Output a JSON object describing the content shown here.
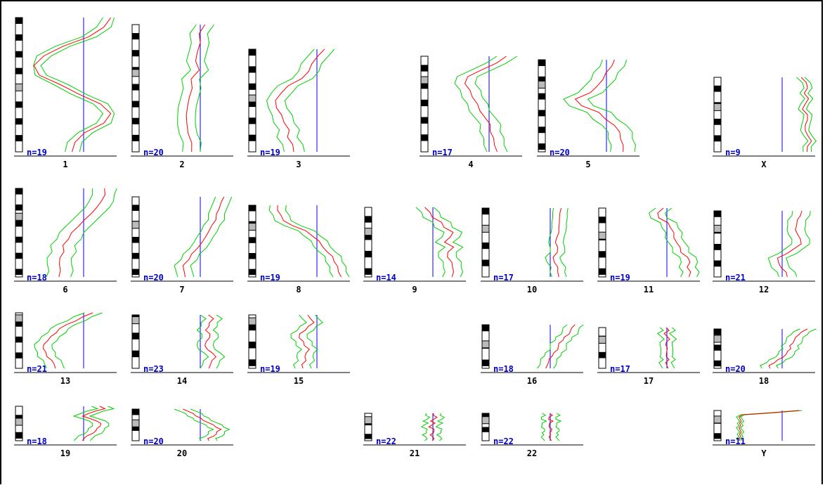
{
  "colors": {
    "mean": "#ff0000",
    "band": "#00d000",
    "baseline": "#0000ff",
    "count_text": "#0000cc",
    "ideogram": "#000000",
    "axis": "#000000"
  },
  "chart_data": {
    "type": "line",
    "title": "",
    "layout": "karyogram-grid",
    "chromosomes": [
      {
        "name": "1",
        "n": "n=19",
        "mean": [
          0.95,
          0.85,
          0.65,
          0.35,
          0.1,
          0.0,
          0.05,
          0.3,
          0.55,
          0.8,
          0.95,
          0.85,
          0.6,
          0.5,
          0.45
        ],
        "band": 0.18,
        "centromere": 0.52
      },
      {
        "name": "2",
        "n": "n=20",
        "mean": [
          0.65,
          0.6,
          0.6,
          0.55,
          0.55,
          0.58,
          0.5,
          0.5,
          0.45,
          0.45,
          0.42,
          0.45,
          0.45,
          0.48,
          0.5
        ],
        "band": 0.22,
        "centromere": 0.38
      },
      {
        "name": "3",
        "n": "n=19",
        "mean": [
          0.7,
          0.6,
          0.55,
          0.5,
          0.4,
          0.25,
          0.15,
          0.1,
          0.1,
          0.15,
          0.2,
          0.25,
          0.25,
          0.3,
          0.3
        ],
        "band": 0.25,
        "centromere": 0.48
      },
      {
        "name": "4",
        "n": "n=17",
        "mean": [
          0.8,
          0.7,
          0.5,
          0.35,
          0.3,
          0.35,
          0.4,
          0.45,
          0.5,
          0.55,
          0.6,
          0.62,
          0.65,
          0.68,
          0.7
        ],
        "band": 0.25,
        "centromere": 0.25
      },
      {
        "name": "5",
        "n": "n=20",
        "mean": [
          0.7,
          0.65,
          0.6,
          0.55,
          0.5,
          0.4,
          0.2,
          0.3,
          0.5,
          0.6,
          0.7,
          0.75,
          0.78,
          0.8,
          0.82
        ],
        "band": 0.3,
        "centromere": 0.27
      },
      {
        "name": "X",
        "n": "n=9",
        "mean": [
          0.85,
          0.9,
          0.9,
          0.88,
          0.92,
          0.9,
          0.85,
          0.9,
          0.92,
          0.88,
          0.9,
          0.92,
          0.95,
          0.92,
          0.9
        ],
        "band": 0.1,
        "centromere": 0.4
      },
      {
        "name": "6",
        "n": "n=18",
        "mean": [
          0.85,
          0.88,
          0.82,
          0.75,
          0.7,
          0.6,
          0.55,
          0.45,
          0.4,
          0.35,
          0.35,
          0.32,
          0.3,
          0.3,
          0.3
        ],
        "band": 0.3,
        "centromere": 0.32
      },
      {
        "name": "7",
        "n": "n=20",
        "mean": [
          0.9,
          0.85,
          0.85,
          0.8,
          0.78,
          0.75,
          0.7,
          0.68,
          0.62,
          0.55,
          0.5,
          0.45,
          0.4,
          0.4,
          0.4
        ],
        "band": 0.2,
        "centromere": 0.35
      },
      {
        "name": "8",
        "n": "n=19",
        "mean": [
          0.1,
          0.12,
          0.15,
          0.2,
          0.3,
          0.45,
          0.55,
          0.62,
          0.68,
          0.72,
          0.78,
          0.82,
          0.85,
          0.88,
          0.9
        ],
        "band": 0.2,
        "centromere": 0.3
      },
      {
        "name": "9",
        "n": "n=14",
        "mean": [
          0.5,
          0.55,
          0.6,
          0.7,
          0.75,
          0.85,
          0.8,
          0.75,
          0.85,
          0.8,
          0.78,
          0.82,
          0.85,
          0.85,
          0.85
        ],
        "band": 0.22,
        "centromere": 0.35
      },
      {
        "name": "10",
        "n": "n=17",
        "mean": [
          0.75,
          0.72,
          0.7,
          0.72,
          0.7,
          0.72,
          0.68,
          0.65,
          0.7,
          0.68,
          0.65,
          0.65,
          0.68,
          0.7,
          0.7
        ],
        "band": 0.18,
        "centromere": 0.3
      },
      {
        "name": "11",
        "n": "n=19",
        "mean": [
          0.55,
          0.5,
          0.5,
          0.6,
          0.65,
          0.68,
          0.7,
          0.72,
          0.75,
          0.78,
          0.85,
          0.9,
          0.85,
          0.88,
          0.88
        ],
        "band": 0.2,
        "centromere": 0.4
      },
      {
        "name": "12",
        "n": "n=21",
        "mean": [
          0.85,
          0.82,
          0.8,
          0.78,
          0.75,
          0.8,
          0.82,
          0.85,
          0.75,
          0.65,
          0.55,
          0.55,
          0.6,
          0.65,
          0.65
        ],
        "band": 0.22,
        "centromere": 0.27
      },
      {
        "name": "13",
        "n": "n=21",
        "mean": [
          0.7,
          0.6,
          0.5,
          0.4,
          0.3,
          0.25,
          0.2,
          0.15,
          0.12,
          0.1,
          0.12,
          0.15,
          0.2,
          0.25,
          0.25
        ],
        "band": 0.22,
        "centromere": 0.1
      },
      {
        "name": "14",
        "n": "n=23",
        "mean": [
          0.7,
          0.75,
          0.72,
          0.7,
          0.68,
          0.72,
          0.7,
          0.68,
          0.65,
          0.7,
          0.75,
          0.78,
          0.75,
          0.72,
          0.72
        ],
        "band": 0.2,
        "centromere": 0.1
      },
      {
        "name": "15",
        "n": "n=19",
        "mean": [
          0.5,
          0.52,
          0.55,
          0.5,
          0.45,
          0.4,
          0.38,
          0.42,
          0.45,
          0.5,
          0.48,
          0.45,
          0.45,
          0.42,
          0.42
        ],
        "band": 0.2,
        "centromere": 0.12
      },
      {
        "name": "16",
        "n": "n=18",
        "mean": [
          0.9,
          0.88,
          0.85,
          0.82,
          0.78,
          0.75,
          0.72,
          0.7,
          0.68,
          0.65,
          0.62,
          0.6,
          0.58,
          0.55,
          0.55
        ],
        "band": 0.2,
        "centromere": 0.45
      },
      {
        "name": "17",
        "n": "n=17",
        "mean": [
          0.6,
          0.62,
          0.58,
          0.6,
          0.62,
          0.6,
          0.58,
          0.62,
          0.6,
          0.58,
          0.6,
          0.62,
          0.6,
          0.6,
          0.6
        ],
        "band": 0.15,
        "centromere": 0.3
      },
      {
        "name": "18",
        "n": "n=20",
        "mean": [
          0.9,
          0.85,
          0.8,
          0.78,
          0.75,
          0.72,
          0.7,
          0.7,
          0.68,
          0.65,
          0.6,
          0.55,
          0.5,
          0.45,
          0.45
        ],
        "band": 0.2,
        "centromere": 0.25
      },
      {
        "name": "19",
        "n": "n=18",
        "mean": [
          0.8,
          0.85,
          0.75,
          0.65,
          0.6,
          0.68,
          0.75,
          0.82,
          0.8,
          0.78,
          0.75,
          0.7,
          0.65,
          0.6,
          0.6
        ],
        "band": 0.2,
        "centromere": 0.45
      },
      {
        "name": "20",
        "n": "n=20",
        "mean": [
          0.4,
          0.45,
          0.5,
          0.55,
          0.6,
          0.65,
          0.7,
          0.75,
          0.8,
          0.85,
          0.82,
          0.8,
          0.75,
          0.7,
          0.7
        ],
        "band": 0.2,
        "centromere": 0.45
      },
      {
        "name": "21",
        "n": "n=22",
        "mean": [
          0.6,
          0.62,
          0.65,
          0.6,
          0.58,
          0.62,
          0.6,
          0.55,
          0.6,
          0.62,
          0.6,
          0.58,
          0.6,
          0.6,
          0.6
        ],
        "band": 0.18,
        "centromere": 0.25
      },
      {
        "name": "22",
        "n": "n=22",
        "mean": [
          0.6,
          0.62,
          0.6,
          0.58,
          0.62,
          0.6,
          0.58,
          0.6,
          0.62,
          0.6,
          0.6,
          0.6,
          0.6,
          0.6,
          0.6
        ],
        "band": 0.18,
        "centromere": 0.25
      },
      {
        "name": "Y",
        "n": "n=11",
        "mean": [
          0.8,
          0.5,
          0.1,
          0.08,
          0.08,
          0.08,
          0.08,
          0.08,
          0.08,
          0.08,
          0.08,
          0.08,
          0.08,
          0.08,
          0.08
        ],
        "band": 0.05,
        "centromere": 0.3
      }
    ]
  }
}
